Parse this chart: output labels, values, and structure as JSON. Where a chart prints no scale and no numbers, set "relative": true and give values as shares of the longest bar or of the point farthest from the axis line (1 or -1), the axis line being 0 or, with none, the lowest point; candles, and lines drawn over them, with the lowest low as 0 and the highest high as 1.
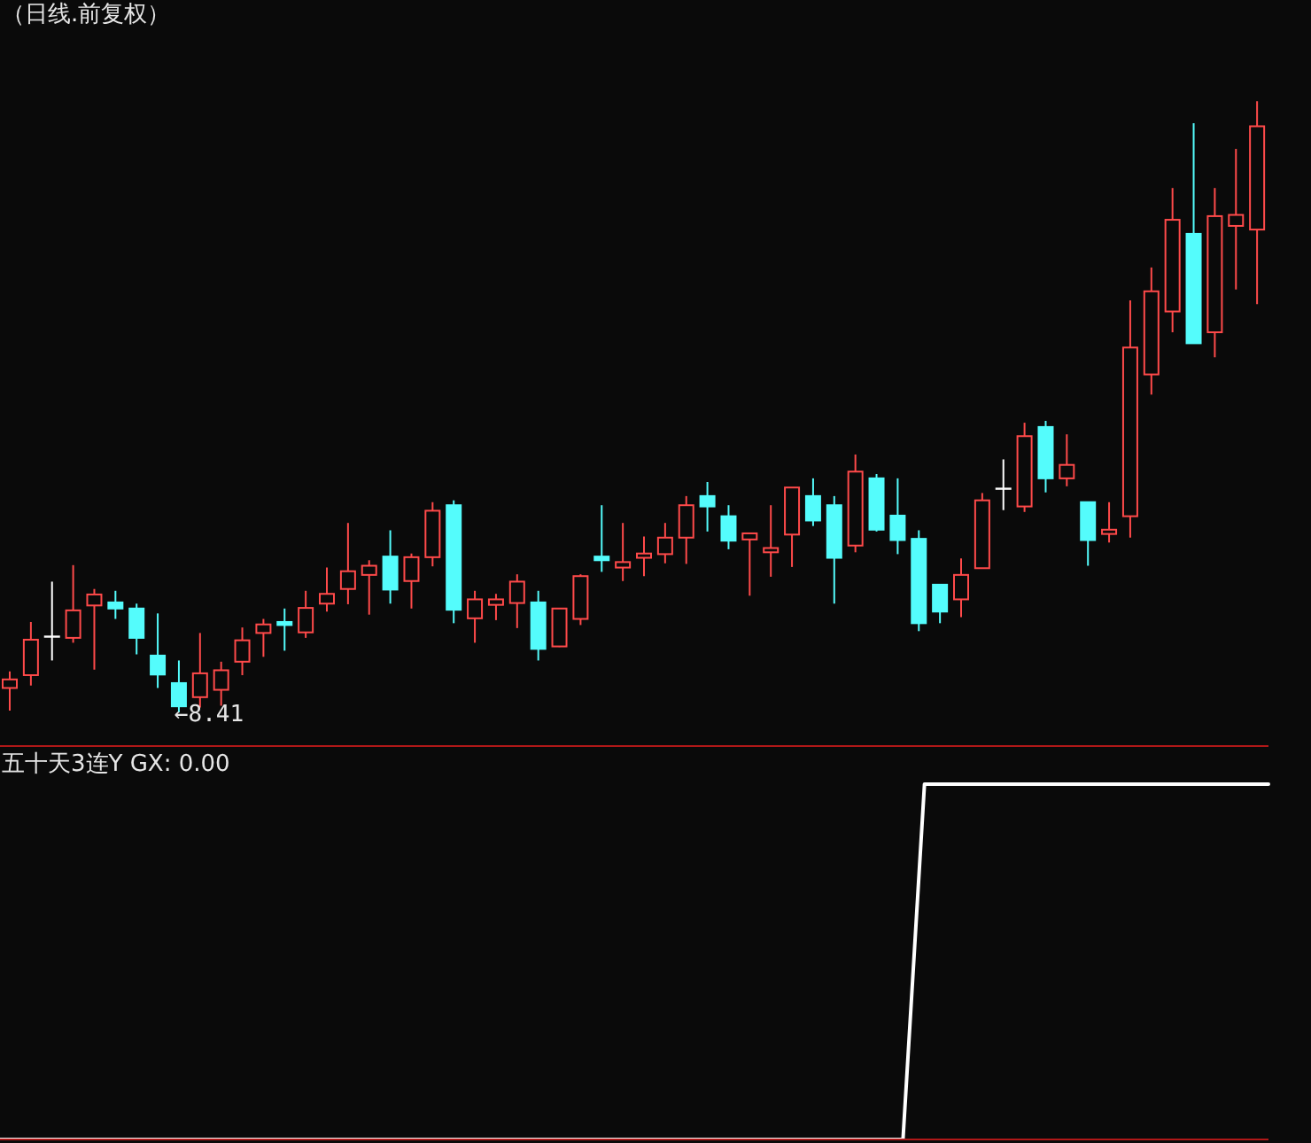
{
  "chart_data": [
    {
      "type": "candlestick",
      "title": "（日线.前复权）",
      "categories": [
        null,
        null,
        null,
        null,
        null,
        null,
        null,
        null,
        null,
        null,
        null,
        null,
        null,
        null,
        null,
        null,
        null,
        null,
        null,
        null,
        null,
        null,
        null,
        null,
        null,
        null,
        null,
        null,
        null,
        null,
        null,
        null,
        null,
        null,
        null,
        null,
        null,
        null,
        null,
        null,
        null,
        null,
        null,
        null,
        null,
        null,
        null,
        null,
        null,
        null,
        null,
        null,
        null,
        null,
        null,
        null,
        null,
        null,
        null,
        null
      ],
      "ohlc": [
        [
          0.04,
          0.067,
          0.003,
          0.054
        ],
        [
          0.061,
          0.148,
          0.044,
          0.119
        ],
        [
          0.124,
          0.214,
          0.085,
          0.124
        ],
        [
          0.122,
          0.241,
          0.114,
          0.167
        ],
        [
          0.175,
          0.202,
          0.07,
          0.193
        ],
        [
          0.18,
          0.199,
          0.153,
          0.17
        ],
        [
          0.17,
          0.178,
          0.095,
          0.122
        ],
        [
          0.093,
          0.162,
          0.04,
          0.062
        ],
        [
          0.048,
          0.085,
          0,
          0.01
        ],
        [
          0.025,
          0.13,
          0.008,
          0.064
        ],
        [
          0.037,
          0.083,
          0.011,
          0.069
        ],
        [
          0.083,
          0.139,
          0.061,
          0.118
        ],
        [
          0.13,
          0.153,
          0.091,
          0.144
        ],
        [
          0.148,
          0.17,
          0.101,
          0.143
        ],
        [
          0.131,
          0.199,
          0.122,
          0.171
        ],
        [
          0.178,
          0.237,
          0.165,
          0.194
        ],
        [
          0.202,
          0.31,
          0.177,
          0.231
        ],
        [
          0.225,
          0.249,
          0.16,
          0.24
        ],
        [
          0.255,
          0.298,
          0.178,
          0.201
        ],
        [
          0.215,
          0.26,
          0.17,
          0.254
        ],
        [
          0.254,
          0.344,
          0.239,
          0.33
        ],
        [
          0.339,
          0.347,
          0.146,
          0.168
        ],
        [
          0.154,
          0.199,
          0.114,
          0.185
        ],
        [
          0.176,
          0.194,
          0.151,
          0.185
        ],
        [
          0.179,
          0.226,
          0.138,
          0.214
        ],
        [
          0.18,
          0.199,
          0.085,
          0.104
        ],
        [
          0.108,
          0.17,
          0.107,
          0.17
        ],
        [
          0.153,
          0.226,
          0.143,
          0.223
        ],
        [
          0.255,
          0.339,
          0.23,
          0.249
        ],
        [
          0.237,
          0.31,
          0.215,
          0.246
        ],
        [
          0.253,
          0.288,
          0.223,
          0.26
        ],
        [
          0.259,
          0.31,
          0.244,
          0.286
        ],
        [
          0.286,
          0.354,
          0.243,
          0.339
        ],
        [
          0.354,
          0.377,
          0.296,
          0.337
        ],
        [
          0.321,
          0.339,
          0.267,
          0.281
        ],
        [
          0.283,
          0.293,
          0.191,
          0.293
        ],
        [
          0.262,
          0.339,
          0.222,
          0.269
        ],
        [
          0.291,
          0.368,
          0.238,
          0.368
        ],
        [
          0.354,
          0.383,
          0.305,
          0.314
        ],
        [
          0.339,
          0.354,
          0.178,
          0.253
        ],
        [
          0.273,
          0.422,
          0.262,
          0.394
        ],
        [
          0.383,
          0.39,
          0.296,
          0.299
        ],
        [
          0.322,
          0.383,
          0.259,
          0.282
        ],
        [
          0.284,
          0.298,
          0.133,
          0.146
        ],
        [
          0.209,
          0.209,
          0.146,
          0.165
        ],
        [
          0.185,
          0.252,
          0.156,
          0.225
        ],
        [
          0.236,
          0.359,
          0.236,
          0.347
        ],
        [
          0.366,
          0.414,
          0.331,
          0.366
        ],
        [
          0.337,
          0.474,
          0.328,
          0.452
        ],
        [
          0.467,
          0.477,
          0.36,
          0.383
        ],
        [
          0.383,
          0.455,
          0.37,
          0.405
        ],
        [
          0.344,
          0.344,
          0.24,
          0.282
        ],
        [
          0.292,
          0.344,
          0.278,
          0.299
        ],
        [
          0.321,
          0.674,
          0.286,
          0.597
        ],
        [
          0.553,
          0.728,
          0.52,
          0.689
        ],
        [
          0.656,
          0.858,
          0.622,
          0.806
        ],
        [
          0.783,
          0.964,
          0.604,
          0.604
        ],
        [
          0.622,
          0.858,
          0.581,
          0.812
        ],
        [
          0.796,
          0.922,
          0.692,
          0.814
        ],
        [
          0.79,
          1,
          0.668,
          0.959
        ]
      ],
      "colors": [
        "#ff4a4a",
        "#ff4a4a",
        "#ffffff",
        "#ff4a4a",
        "#ff4a4a",
        "#54fcfc",
        "#54fcfc",
        "#54fcfc",
        "#54fcfc",
        "#ff4a4a",
        "#ff4a4a",
        "#ff4a4a",
        "#ff4a4a",
        "#54fcfc",
        "#ff4a4a",
        "#ff4a4a",
        "#ff4a4a",
        "#ff4a4a",
        "#54fcfc",
        "#ff4a4a",
        "#ff4a4a",
        "#54fcfc",
        "#ff4a4a",
        "#ff4a4a",
        "#ff4a4a",
        "#54fcfc",
        "#ff4a4a",
        "#ff4a4a",
        "#54fcfc",
        "#ff4a4a",
        "#ff4a4a",
        "#ff4a4a",
        "#ff4a4a",
        "#54fcfc",
        "#54fcfc",
        "#ff4a4a",
        "#ff4a4a",
        "#ff4a4a",
        "#54fcfc",
        "#54fcfc",
        "#ff4a4a",
        "#54fcfc",
        "#54fcfc",
        "#54fcfc",
        "#54fcfc",
        "#ff4a4a",
        "#ff4a4a",
        "#ffffff",
        "#ff4a4a",
        "#54fcfc",
        "#ff4a4a",
        "#54fcfc",
        "#ff4a4a",
        "#ff4a4a",
        "#ff4a4a",
        "#ff4a4a",
        "#54fcfc",
        "#ff4a4a",
        "#ff4a4a",
        "#ff4a4a"
      ],
      "relative": true,
      "annotations": [
        "←8.41"
      ]
    },
    {
      "type": "line",
      "title": "五十天3连Y GX: 0.00",
      "categories": [
        null,
        null,
        null,
        null,
        null,
        null,
        null,
        null,
        null,
        null,
        null,
        null,
        null,
        null,
        null,
        null,
        null,
        null,
        null,
        null,
        null,
        null,
        null,
        null,
        null,
        null,
        null,
        null,
        null,
        null,
        null,
        null,
        null,
        null,
        null,
        null,
        null,
        null,
        null,
        null,
        null,
        null,
        null,
        null,
        null,
        null,
        null,
        null,
        null,
        null,
        null,
        null,
        null,
        null,
        null,
        null,
        null,
        null,
        null,
        null
      ],
      "values": [
        0,
        0,
        0,
        0,
        0,
        0,
        0,
        0,
        0,
        0,
        0,
        0,
        0,
        0,
        0,
        0,
        0,
        0,
        0,
        0,
        0,
        0,
        0,
        0,
        0,
        0,
        0,
        0,
        0,
        0,
        0,
        0,
        0,
        0,
        0,
        0,
        0,
        0,
        0,
        0,
        0,
        0,
        0,
        1,
        1,
        1,
        1,
        1,
        1,
        1,
        1,
        1,
        1,
        1,
        1,
        1,
        1,
        1,
        1,
        1
      ],
      "color": "#ffffff",
      "relative": true
    }
  ]
}
